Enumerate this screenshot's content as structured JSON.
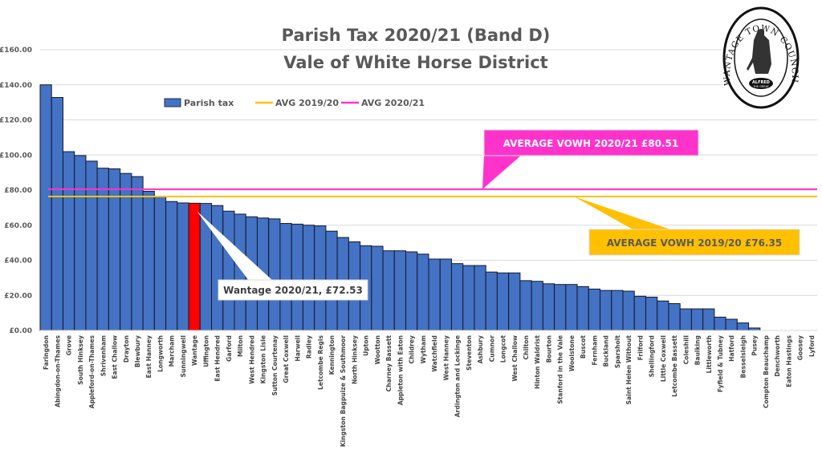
{
  "logo": {
    "text": "WANTAGE TOWN COUNCIL",
    "subtext": "ALFRED THE GREAT"
  },
  "chart_data": {
    "type": "bar",
    "title": "Parish Tax 2020/21 (Band D)",
    "subtitle": "Vale of White Horse District",
    "xlabel": "",
    "ylabel": "",
    "ylim": [
      0,
      160
    ],
    "yticks": [
      "£0.00",
      "£20.00",
      "£40.00",
      "£60.00",
      "£80.00",
      "£100.00",
      "£120.00",
      "£140.00",
      "£160.00"
    ],
    "grid": true,
    "legend_position": "top",
    "categories": [
      "Faringdon",
      "Abingdon-on-Thames",
      "Grove",
      "South Hinksey",
      "Appleford-on-Thames",
      "Shrivenham",
      "East Challow",
      "Drayton",
      "Blewbury",
      "East Hanney",
      "Longworth",
      "Marcham",
      "Sunningwell",
      "Wantage",
      "Uffington",
      "East Hendred",
      "Garford",
      "Milton",
      "West Hendred",
      "Kingston Lisle",
      "Sutton Courtenay",
      "Great Coxwell",
      "Harwell",
      "Radley",
      "Letcombe Regis",
      "Kennington",
      "Kingston Bagpuize & Southmoor",
      "North Hinksey",
      "Upton",
      "Wootton",
      "Charney Bassett",
      "Appleton with Eaton",
      "Childrey",
      "Wytham",
      "Watchfield",
      "West Hanney",
      "Ardington and Lockinge",
      "Steventon",
      "Ashbury",
      "Cumnor",
      "Longcot",
      "West Challow",
      "Chilton",
      "Hinton Waldrist",
      "Bourton",
      "Stanford in the Vale",
      "Woolstone",
      "Buscot",
      "Fernham",
      "Buckland",
      "Sparsholt",
      "Saint Helen Without",
      "Frilford",
      "Shellingford",
      "Little Coxwell",
      "Letcombe Bassett",
      "Coleshill",
      "Baulking",
      "Littleworth",
      "Fyfield & Tubney",
      "Hatford",
      "Besselsleigh",
      "Pusey",
      "Compton Beauchamp",
      "Denchworth",
      "Eaton Hastings",
      "Goosey",
      "Lyford"
    ],
    "series": [
      {
        "name": "Parish tax",
        "color": "#4472C4",
        "highlight": {
          "category": "Wantage",
          "color": "#FF0000"
        },
        "values": [
          140.0,
          132.8,
          101.9,
          99.7,
          96.5,
          92.5,
          92.1,
          89.5,
          87.7,
          79.3,
          76.5,
          73.5,
          72.7,
          72.53,
          72.4,
          71.2,
          68.0,
          66.3,
          64.8,
          64.1,
          63.6,
          61.0,
          60.6,
          60.0,
          59.6,
          56.6,
          53.0,
          50.5,
          48.3,
          48.0,
          45.4,
          45.4,
          44.8,
          43.5,
          40.7,
          40.7,
          38.1,
          37.0,
          37.0,
          33.3,
          32.8,
          32.8,
          28.4,
          28.0,
          26.6,
          26.2,
          26.2,
          25.0,
          23.6,
          22.8,
          22.8,
          22.4,
          19.5,
          19.0,
          16.8,
          15.3,
          12.3,
          12.3,
          12.3,
          7.6,
          6.4,
          4.3,
          1.4,
          0,
          0,
          0,
          0,
          0
        ]
      },
      {
        "name": "AVG 2019/20",
        "type": "line",
        "color": "#FFC000",
        "value": 76.35
      },
      {
        "name": "AVG 2020/21",
        "type": "line",
        "color": "#FF33CC",
        "value": 80.51
      }
    ],
    "annotations": [
      {
        "text": "AVERAGE VOWH 2020/21  £80.51",
        "color": "#FF33CC",
        "text_color": "#FFFFFF"
      },
      {
        "text": "AVERAGE VOWH 2019/20  £76.35",
        "color": "#FFC000",
        "text_color": "#595959"
      },
      {
        "text": "Wantage 2020/21, £72.53",
        "color": "#FFFFFF",
        "text_color": "#404040"
      }
    ]
  }
}
